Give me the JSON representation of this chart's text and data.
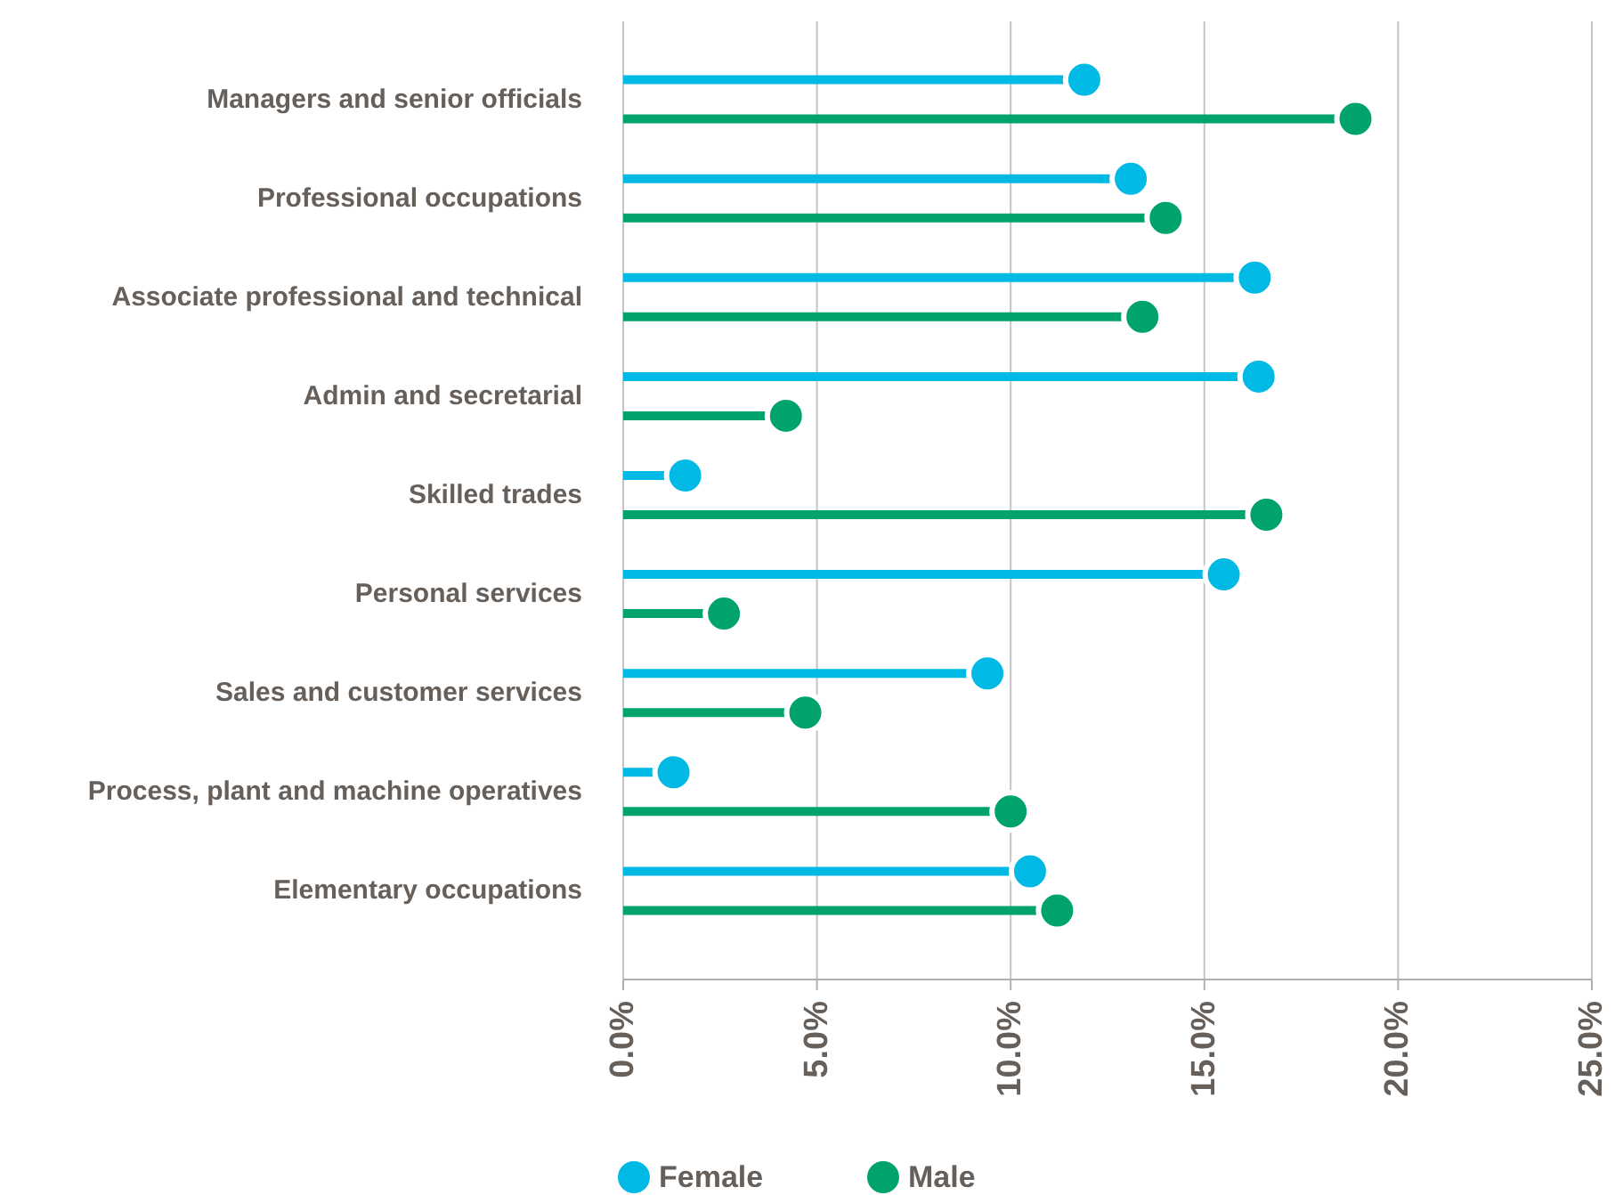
{
  "chart_data": {
    "type": "lollipop",
    "orientation": "horizontal",
    "categories": [
      "Managers and senior officials",
      "Professional occupations",
      "Associate professional and technical",
      "Admin and secretarial",
      "Skilled trades",
      "Personal services",
      "Sales and customer services",
      "Process, plant and machine operatives",
      "Elementary occupations"
    ],
    "series": [
      {
        "name": "Female",
        "color": "#00b9e4",
        "values": [
          11.9,
          13.1,
          16.3,
          16.4,
          1.6,
          15.5,
          9.4,
          1.3,
          10.5
        ]
      },
      {
        "name": "Male",
        "color": "#00a36c",
        "values": [
          18.9,
          14.0,
          13.4,
          4.2,
          16.6,
          2.6,
          4.7,
          10.0,
          11.2
        ]
      }
    ],
    "xlim": [
      0,
      25
    ],
    "xticks": [
      {
        "value": 0,
        "label": "0.0%"
      },
      {
        "value": 5,
        "label": "5.0%"
      },
      {
        "value": 10,
        "label": "10.0%"
      },
      {
        "value": 15,
        "label": "15.0%"
      },
      {
        "value": 20,
        "label": "20.0%"
      },
      {
        "value": 25,
        "label": "25.0%"
      }
    ],
    "grid": "x",
    "legend": "bottom",
    "marker": "circle"
  }
}
